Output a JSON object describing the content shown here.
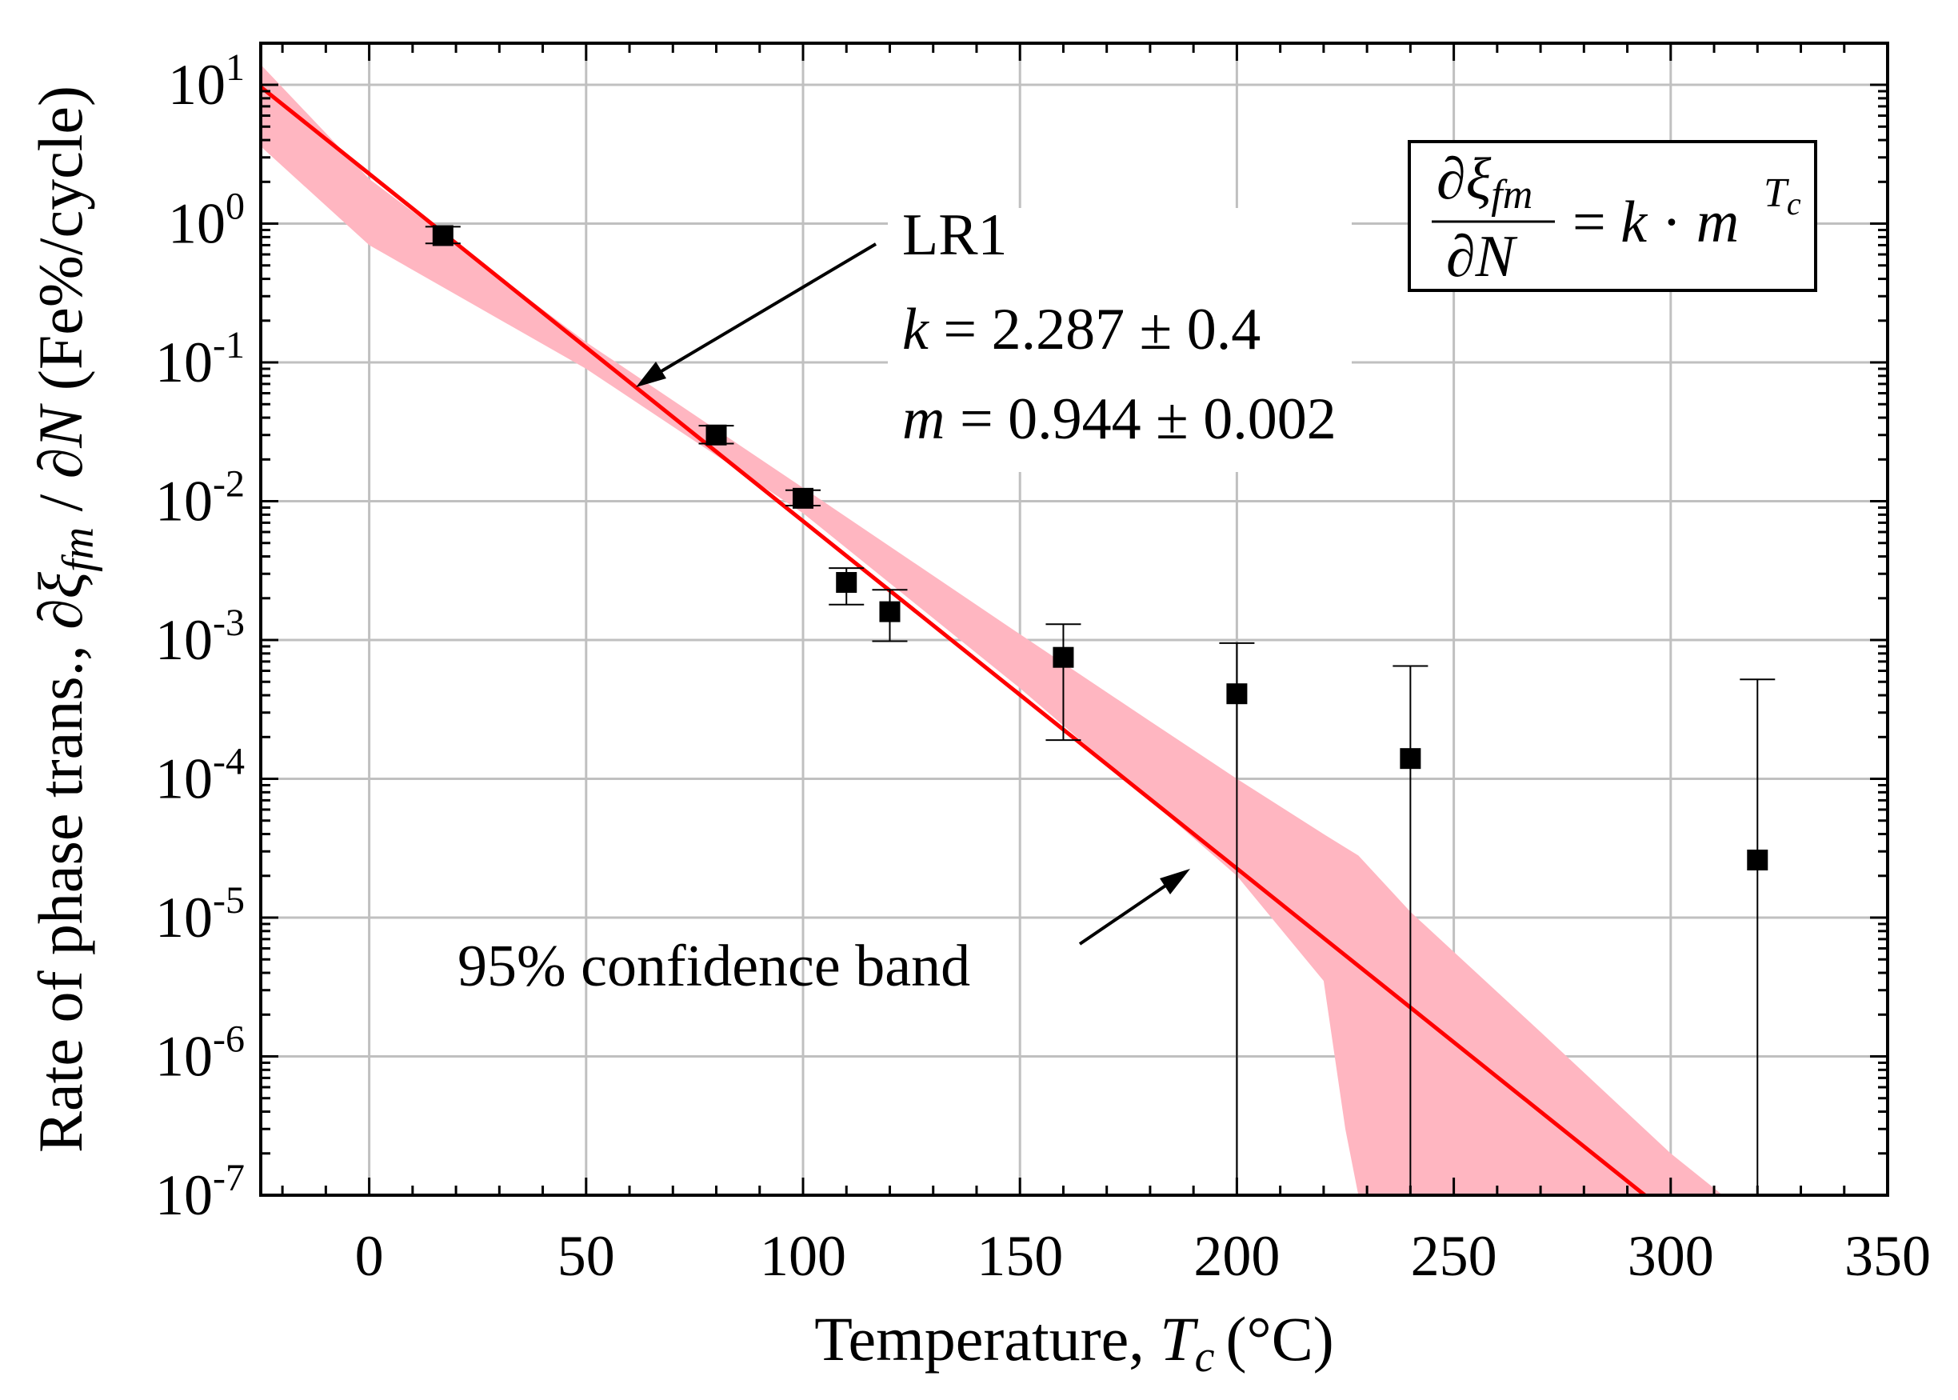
{
  "chart_data": {
    "type": "scatter",
    "xlabel": "Temperature,",
    "xlabel_symbol": "T",
    "xlabel_sub": "c",
    "xlabel_unit": "(°C)",
    "ylabel_prefix": "Rate of phase trans., ∂",
    "ylabel_xi": "ξ",
    "ylabel_sub": "fm",
    "ylabel_mid": " / ∂",
    "ylabel_N": "N",
    "ylabel_unit": " (Fe%/cycle)",
    "x_range": [
      -25,
      350
    ],
    "y_range_log10": [
      -7,
      1.3
    ],
    "x_ticks": [
      0,
      50,
      100,
      150,
      200,
      250,
      300,
      350
    ],
    "x_tick_labels": [
      "0",
      "50",
      "100",
      "150",
      "200",
      "250",
      "300",
      "350"
    ],
    "y_tick_exponents": [
      1,
      0,
      -1,
      -2,
      -3,
      -4,
      -5,
      -6,
      -7
    ],
    "y_tick_base": "10",
    "y_tick_sup": [
      "1",
      "0",
      "-1",
      "-2",
      "-3",
      "-4",
      "-5",
      "-6",
      "-7"
    ],
    "grid": true,
    "series": [
      {
        "name": "data",
        "x": [
          17,
          80,
          100,
          110,
          120,
          160,
          200,
          240,
          320
        ],
        "y": [
          0.82,
          0.03,
          0.0105,
          0.0026,
          0.0016,
          0.00075,
          0.00041,
          0.00014,
          2.6e-05
        ],
        "y_low": [
          0.72,
          0.026,
          0.0093,
          0.0018,
          0.00098,
          0.00019,
          1e-07,
          1e-07,
          1e-07
        ],
        "y_high": [
          0.95,
          0.035,
          0.012,
          0.0033,
          0.0023,
          0.0013,
          0.00095,
          0.00065,
          0.00052
        ]
      },
      {
        "name": "LR1 fit",
        "k": 2.287,
        "m": 0.944,
        "color": "#ff0000"
      },
      {
        "name": "95% confidence band",
        "color": "#ffb6c1",
        "x": [
          -25,
          0,
          50,
          100,
          150,
          180,
          200,
          220,
          225,
          228,
          240,
          270,
          300,
          312
        ],
        "lower": [
          3.6,
          0.7,
          0.09,
          0.0082,
          0.00045,
          7e-05,
          2e-05,
          3.5e-06,
          3e-07,
          1e-07,
          1e-07,
          1e-07,
          1e-07,
          1e-07
        ],
        "upper": [
          14.0,
          2.1,
          0.14,
          0.0125,
          0.0011,
          0.00026,
          0.0001,
          4e-05,
          3.2e-05,
          2.8e-05,
          1.1e-05,
          1.5e-06,
          2e-07,
          1e-07
        ]
      }
    ],
    "annotations": {
      "lr1": "LR1",
      "k_symbol": "k",
      "k_value": " = 2.287 ± 0.4",
      "m_symbol": "m",
      "m_value": " = 0.944 ± 0.002",
      "band_label": "95% confidence  band",
      "formula_num_d": "∂",
      "formula_num_xi": "ξ",
      "formula_num_sub": "fm",
      "formula_den": "∂",
      "formula_den_N": "N",
      "formula_rhs": "= ",
      "formula_k": "k",
      "formula_dot": " · ",
      "formula_m": "m",
      "formula_sup_T": "T",
      "formula_sup_c": "c"
    }
  }
}
